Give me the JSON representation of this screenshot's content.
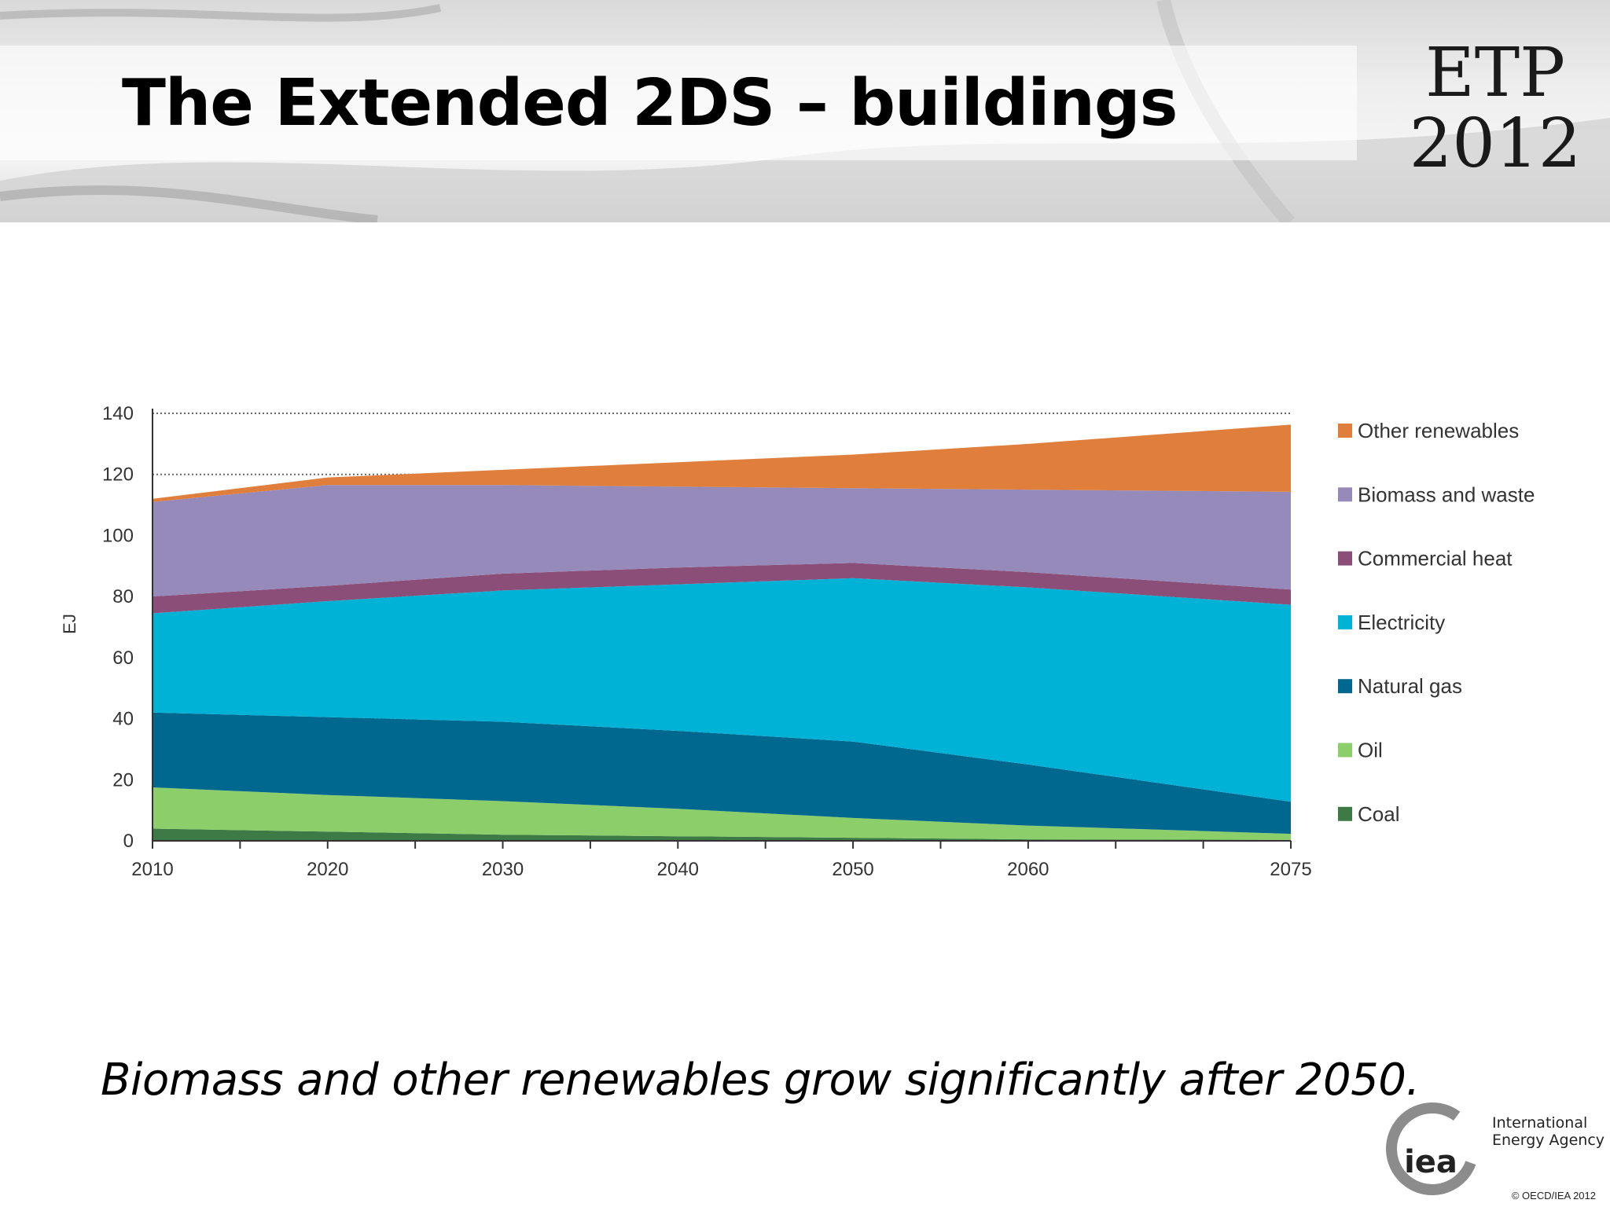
{
  "slide": {
    "title": "The Extended 2DS – buildings",
    "caption": "Biomass and other renewables grow significantly after 2050.",
    "logo_line1": "ETP",
    "logo_line2": "2012",
    "org_line1": "International",
    "org_line2": "Energy Agency",
    "org_mark": "iea",
    "copyright": "© OECD/IEA 2012"
  },
  "chart_data": {
    "type": "area",
    "stacked": true,
    "ylabel": "EJ",
    "xlabel": "",
    "ylim": [
      0,
      140
    ],
    "xlim": [
      2010,
      2075
    ],
    "yticks": [
      0,
      20,
      40,
      60,
      80,
      100,
      120,
      140
    ],
    "xtick_labels": [
      2010,
      2020,
      2030,
      2040,
      2050,
      2060,
      2075
    ],
    "x": [
      2010,
      2020,
      2030,
      2040,
      2050,
      2060,
      2075
    ],
    "legend_position": "right",
    "series": [
      {
        "name": "Coal",
        "color": "#3d7a45",
        "values": [
          4,
          3,
          2,
          1.5,
          1,
          0.5,
          0.3
        ]
      },
      {
        "name": "Oil",
        "color": "#8ccf6a",
        "values": [
          13.5,
          12,
          11,
          9,
          6.5,
          4.5,
          2
        ]
      },
      {
        "name": "Natural gas",
        "color": "#00678e",
        "values": [
          24.5,
          25.5,
          26,
          25.5,
          25,
          20,
          10.5
        ]
      },
      {
        "name": "Electricity",
        "color": "#00b2d6",
        "values": [
          32.5,
          38,
          43,
          48,
          53.5,
          58,
          64.5
        ]
      },
      {
        "name": "Commercial heat",
        "color": "#8b4e78",
        "values": [
          5.5,
          5,
          5.5,
          5.5,
          5,
          5,
          5
        ]
      },
      {
        "name": "Biomass and waste",
        "color": "#968aba",
        "values": [
          31,
          33,
          29,
          26.5,
          24.5,
          27,
          32
        ]
      },
      {
        "name": "Other renewables",
        "color": "#e07f3c",
        "values": [
          1,
          2.5,
          5,
          8,
          11,
          15,
          22
        ]
      }
    ]
  }
}
